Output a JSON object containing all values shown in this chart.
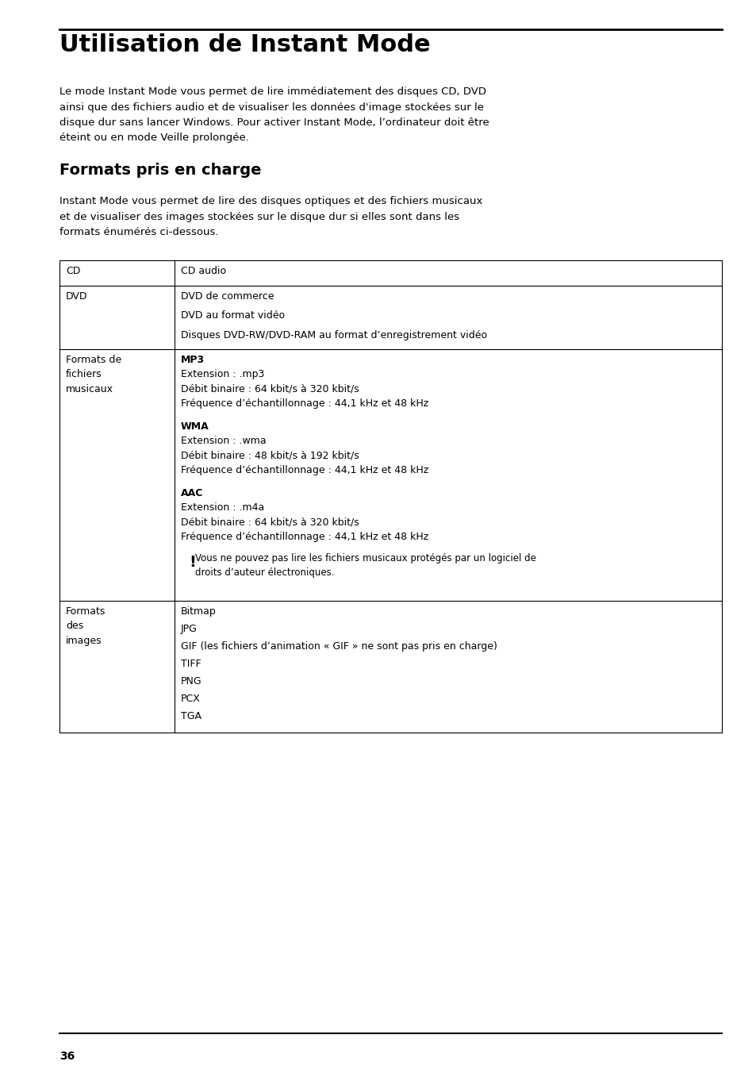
{
  "title": "Utilisation de Instant Mode",
  "subtitle2": "Formats pris en charge",
  "p1_lines": [
    "Le mode Instant Mode vous permet de lire immédiatement des disques CD, DVD",
    "ainsi que des fichiers audio et de visualiser les données d'image stockées sur le",
    "disque dur sans lancer Windows. Pour activer Instant Mode, l’ordinateur doit être",
    "éteint ou en mode Veille prolongée."
  ],
  "p2_lines": [
    "Instant Mode vous permet de lire des disques optiques et des fichiers musicaux",
    "et de visualiser des images stockées sur le disque dur si elles sont dans les",
    "formats énumérés ci-dessous."
  ],
  "page_number": "36",
  "bg_color": "#ffffff",
  "text_color": "#000000",
  "dvd_lines": [
    "DVD de commerce",
    "DVD au format vidéo",
    "Disques DVD-RW/DVD-RAM au format d’enregistrement vidéo"
  ],
  "mp3_block": [
    [
      "MP3",
      true
    ],
    [
      "Extension : .mp3",
      false
    ],
    [
      "Débit binaire : 64 kbit/s à 320 kbit/s",
      false
    ],
    [
      "Fréquence d’échantillonnage : 44,1 kHz et 48 kHz",
      false
    ]
  ],
  "wma_block": [
    [
      "WMA",
      true
    ],
    [
      "Extension : .wma",
      false
    ],
    [
      "Débit binaire : 48 kbit/s à 192 kbit/s",
      false
    ],
    [
      "Fréquence d’échantillonnage : 44,1 kHz et 48 kHz",
      false
    ]
  ],
  "aac_block": [
    [
      "AAC",
      true
    ],
    [
      "Extension : .m4a",
      false
    ],
    [
      "Débit binaire : 64 kbit/s à 320 kbit/s",
      false
    ],
    [
      "Fréquence d’échantillonnage : 44,1 kHz et 48 kHz",
      false
    ]
  ],
  "warning_line1": "Vous ne pouvez pas lire les fichiers musicaux protégés par un logiciel de",
  "warning_line2": "droits d’auteur électroniques.",
  "img_lines": [
    "Bitmap",
    "JPG",
    "GIF (les fichiers d’animation « GIF » ne sont pas pris en charge)",
    "TIFF",
    "PNG",
    "PCX",
    "TGA"
  ]
}
